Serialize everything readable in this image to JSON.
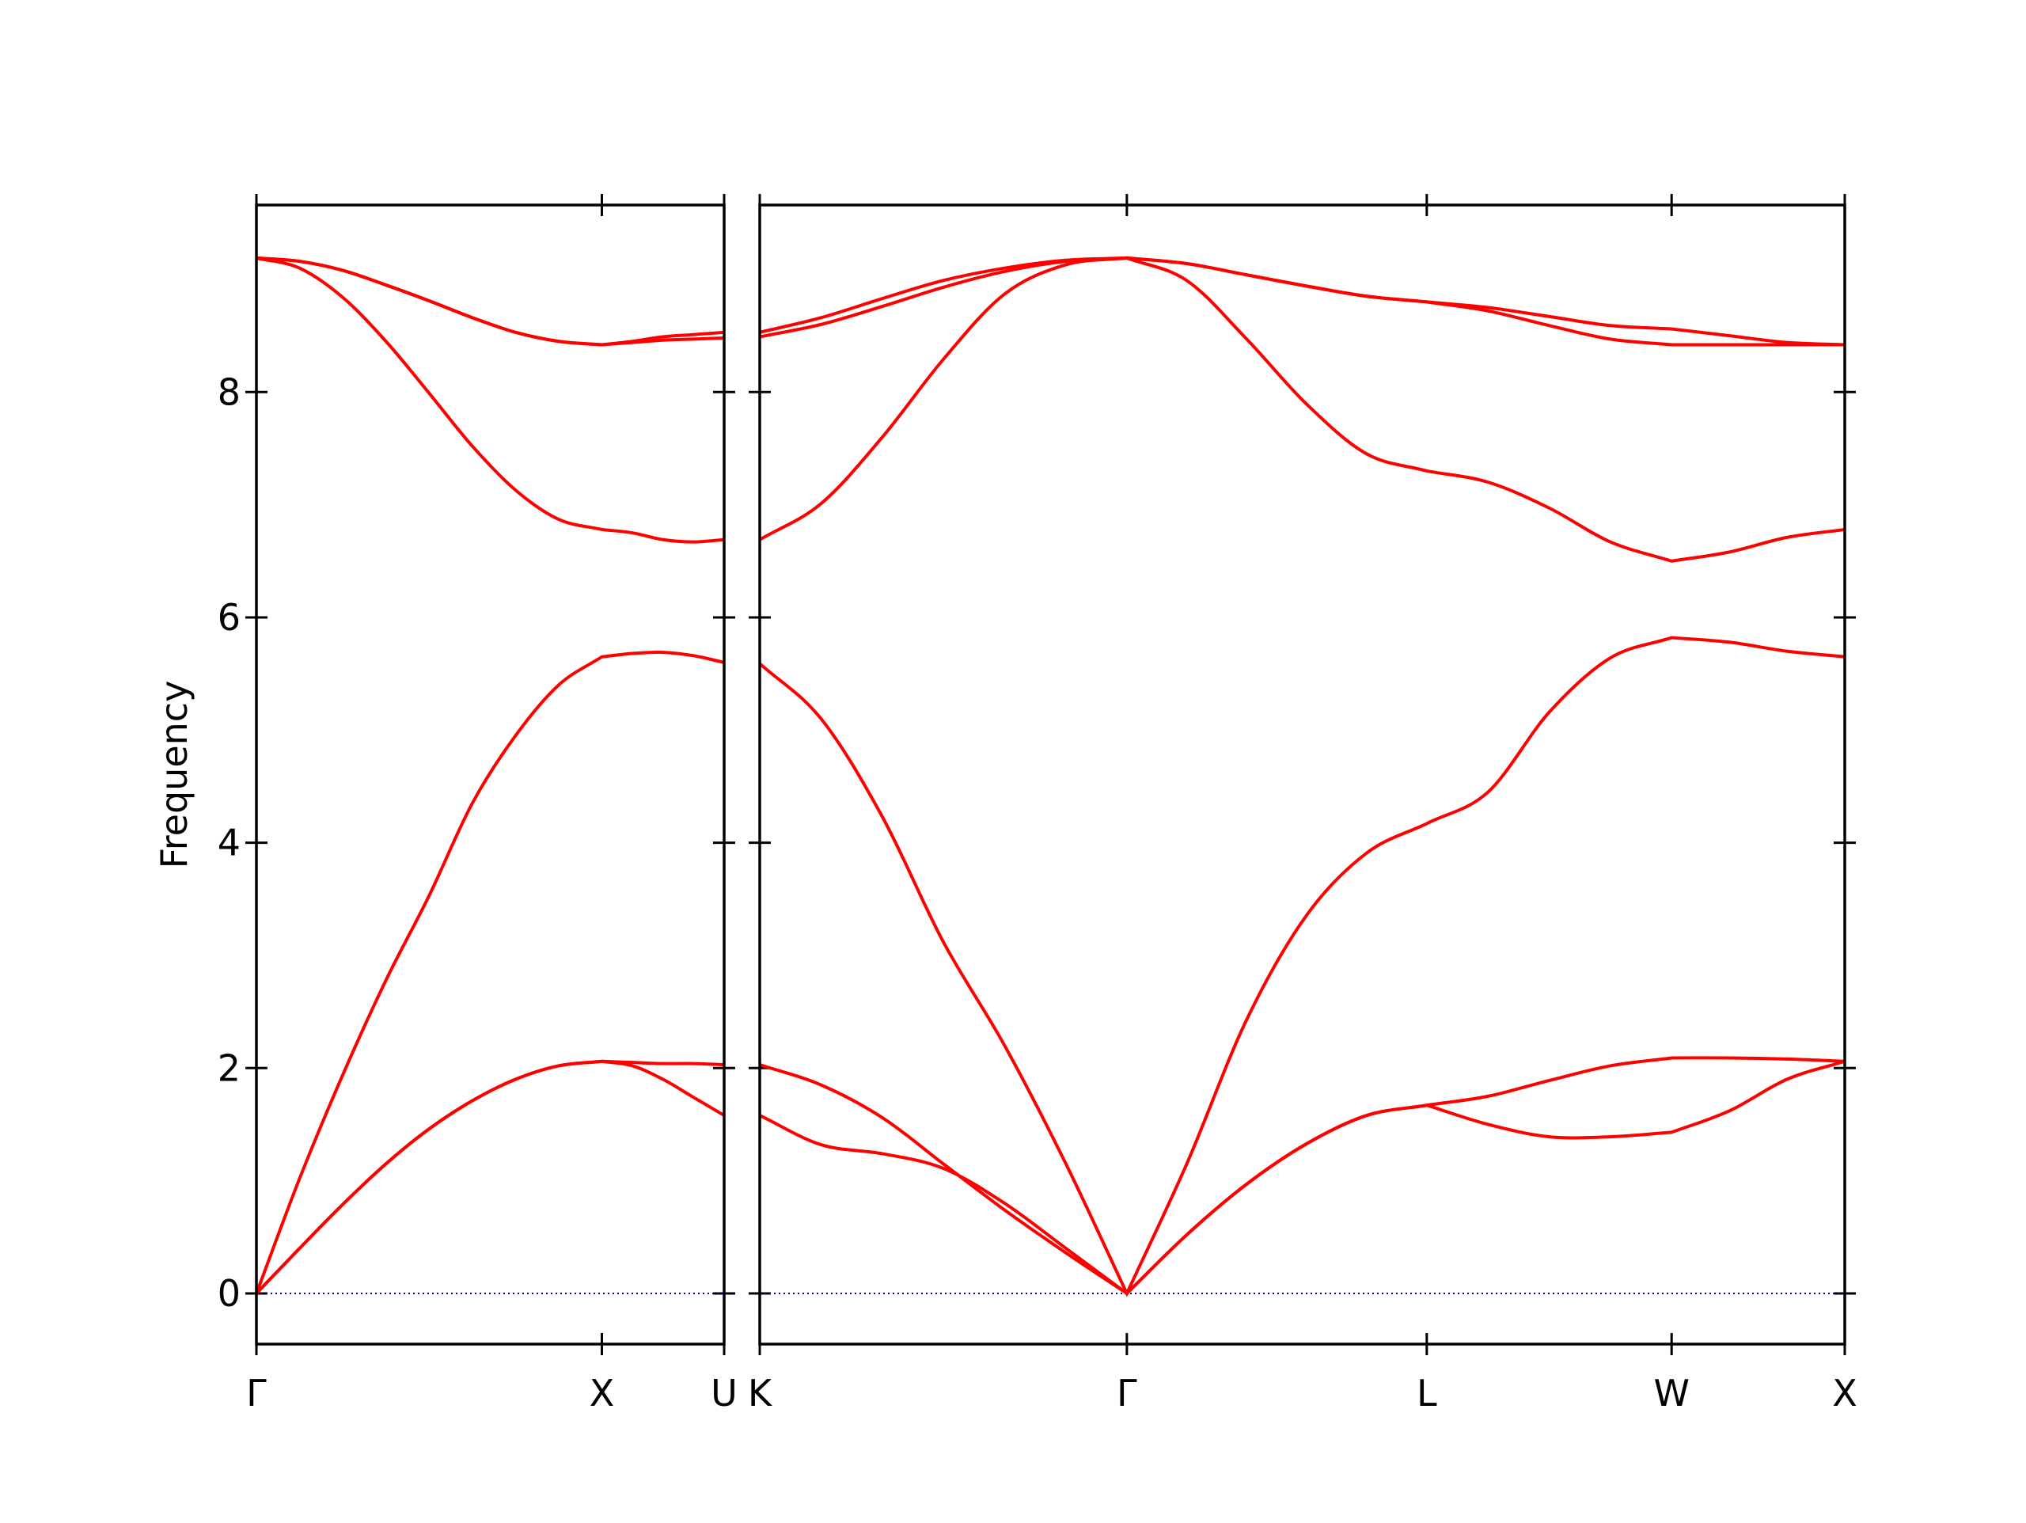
{
  "chart_data": [
    {
      "type": "line",
      "ylabel": "Frequency",
      "xlim": [
        0,
        1.354
      ],
      "ylim": [
        -0.45,
        9.66
      ],
      "xticks": [
        {
          "value": 0,
          "label": "Γ"
        },
        {
          "value": 1,
          "label": "X"
        },
        {
          "value": 1.354,
          "label": "U"
        }
      ],
      "yticks": [
        0,
        2,
        4,
        6,
        8
      ],
      "hline": {
        "y": 0,
        "color": "#0000aa"
      },
      "x": [
        0,
        0.125,
        0.25,
        0.375,
        0.5,
        0.625,
        0.75,
        0.875,
        1,
        1.0885,
        1.177,
        1.2655,
        1.354
      ],
      "series": [
        {
          "color": "#ff0000",
          "values": [
            0,
            0.4,
            0.79,
            1.15,
            1.46,
            1.71,
            1.9,
            2.02,
            2.06,
            2.02,
            1.9,
            1.74,
            1.58
          ]
        },
        {
          "color": "#ff0000",
          "values": [
            0,
            0.4,
            0.79,
            1.15,
            1.46,
            1.71,
            1.9,
            2.02,
            2.06,
            2.05,
            2.04,
            2.04,
            2.03
          ]
        },
        {
          "color": "#ff0000",
          "values": [
            0,
            1.02,
            1.94,
            2.78,
            3.53,
            4.35,
            4.95,
            5.4,
            5.65,
            5.68,
            5.69,
            5.66,
            5.6
          ]
        },
        {
          "color": "#ff0000",
          "values": [
            9.19,
            9.1,
            8.84,
            8.45,
            7.99,
            7.52,
            7.13,
            6.87,
            6.78,
            6.75,
            6.69,
            6.67,
            6.69
          ]
        },
        {
          "color": "#ff0000",
          "values": [
            9.19,
            9.16,
            9.08,
            8.95,
            8.81,
            8.66,
            8.53,
            8.45,
            8.42,
            8.44,
            8.46,
            8.47,
            8.48
          ]
        },
        {
          "color": "#ff0000",
          "values": [
            9.19,
            9.16,
            9.08,
            8.95,
            8.81,
            8.66,
            8.53,
            8.45,
            8.42,
            8.45,
            8.49,
            8.51,
            8.53
          ]
        }
      ]
    },
    {
      "type": "line",
      "xlim": [
        1.354,
        4.487
      ],
      "ylim": [
        -0.45,
        9.66
      ],
      "xticks": [
        {
          "value": 1.354,
          "label": "K"
        },
        {
          "value": 2.414,
          "label": "Γ"
        },
        {
          "value": 3.28,
          "label": "L"
        },
        {
          "value": 3.987,
          "label": "W"
        },
        {
          "value": 4.487,
          "label": "X"
        }
      ],
      "hline": {
        "y": 0,
        "color": "#0000aa"
      },
      "x": [
        1.354,
        1.531,
        1.708,
        1.884,
        2.061,
        2.238,
        2.414,
        2.587,
        2.76,
        2.934,
        3.107,
        3.28,
        3.457,
        3.634,
        3.81,
        3.987,
        4.154,
        4.32,
        4.487
      ],
      "series": [
        {
          "color": "#ff0000",
          "values": [
            1.58,
            1.32,
            1.24,
            1.11,
            0.8,
            0.4,
            0,
            0.52,
            0.97,
            1.33,
            1.58,
            1.67,
            1.5,
            1.39,
            1.39,
            1.43,
            1.62,
            1.9,
            2.06
          ]
        },
        {
          "color": "#ff0000",
          "values": [
            2.03,
            1.85,
            1.56,
            1.15,
            0.74,
            0.36,
            0,
            0.52,
            0.97,
            1.33,
            1.58,
            1.67,
            1.75,
            1.89,
            2.02,
            2.09,
            2.09,
            2.08,
            2.06
          ]
        },
        {
          "color": "#ff0000",
          "values": [
            5.59,
            5.1,
            4.23,
            3.12,
            2.2,
            1.15,
            0,
            1.15,
            2.43,
            3.36,
            3.91,
            4.17,
            4.45,
            5.16,
            5.64,
            5.82,
            5.78,
            5.7,
            5.65
          ]
        },
        {
          "color": "#ff0000",
          "values": [
            6.69,
            7.01,
            7.6,
            8.29,
            8.87,
            9.13,
            9.19,
            8.99,
            8.47,
            7.89,
            7.45,
            7.3,
            7.2,
            6.97,
            6.67,
            6.5,
            6.58,
            6.71,
            6.78
          ]
        },
        {
          "color": "#ff0000",
          "values": [
            8.49,
            8.6,
            8.76,
            8.93,
            9.07,
            9.16,
            9.19,
            9.14,
            9.04,
            8.94,
            8.85,
            8.8,
            8.72,
            8.59,
            8.47,
            8.42,
            8.42,
            8.42,
            8.42
          ]
        },
        {
          "color": "#ff0000",
          "values": [
            8.53,
            8.66,
            8.83,
            8.99,
            9.1,
            9.17,
            9.19,
            9.14,
            9.04,
            8.94,
            8.85,
            8.8,
            8.75,
            8.67,
            8.59,
            8.56,
            8.5,
            8.44,
            8.42
          ]
        }
      ]
    }
  ]
}
